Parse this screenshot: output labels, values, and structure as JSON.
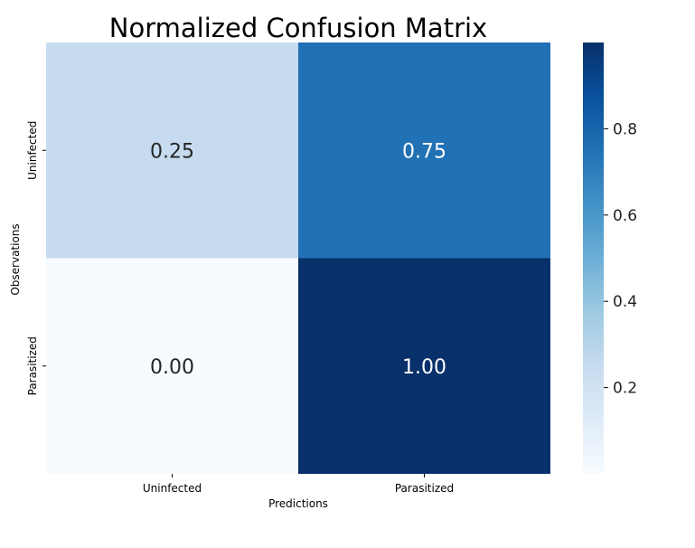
{
  "chart_data": {
    "type": "heatmap",
    "title": "Normalized Confusion Matrix",
    "xlabel": "Predictions",
    "ylabel": "Observations",
    "x_categories": [
      "Uninfected",
      "Parasitized"
    ],
    "y_categories": [
      "Uninfected",
      "Parasitized"
    ],
    "values": [
      [
        0.25,
        0.75
      ],
      [
        0.0,
        1.0
      ]
    ],
    "value_labels": [
      [
        "0.25",
        "0.75"
      ],
      [
        "0.00",
        "1.00"
      ]
    ],
    "colormap": "Blues",
    "colorbar": {
      "range": [
        0.0,
        1.0
      ],
      "ticks": [
        0.2,
        0.4,
        0.6,
        0.8
      ],
      "tick_labels": [
        "0.2",
        "0.4",
        "0.6",
        "0.8"
      ]
    },
    "cell_colors": [
      [
        "#c6dbef",
        "#2171b5"
      ],
      [
        "#f7fbff",
        "#08306b"
      ]
    ]
  }
}
